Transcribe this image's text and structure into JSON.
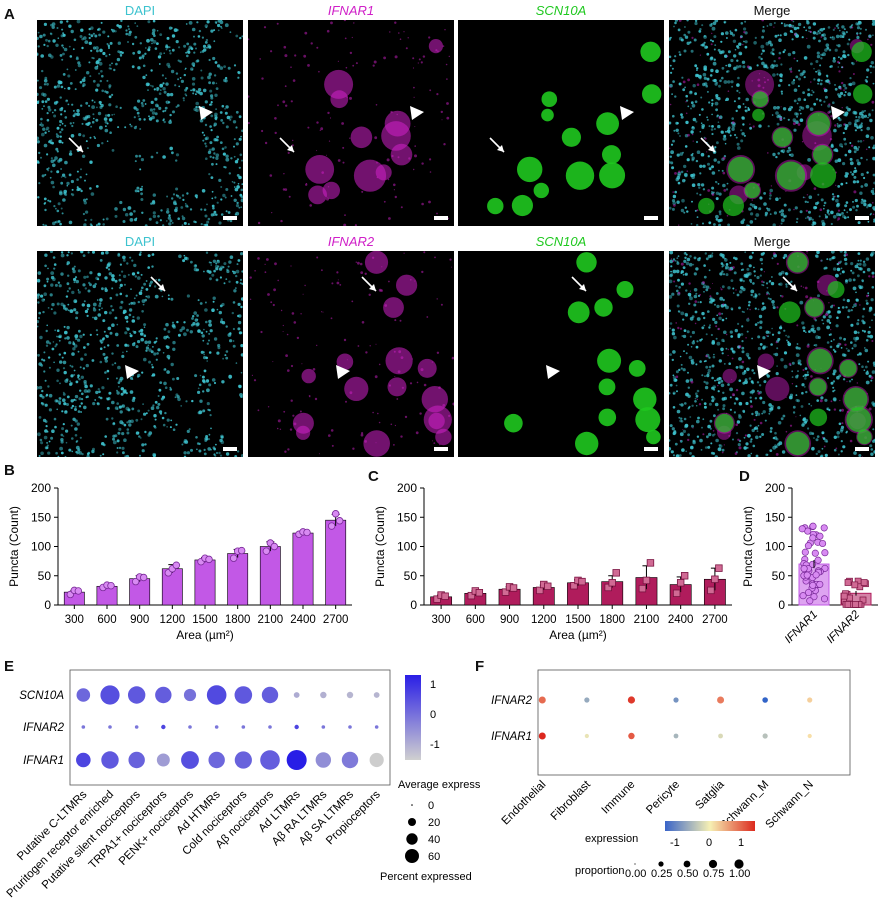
{
  "panel_labels": {
    "A": "A",
    "B": "B",
    "C": "C",
    "D": "D",
    "E": "E",
    "F": "F"
  },
  "panel_a": {
    "row1": [
      "DAPI",
      "IFNAR1",
      "SCN10A",
      "Merge"
    ],
    "row2": [
      "DAPI",
      "IFNAR2",
      "SCN10A",
      "Merge"
    ],
    "colors": {
      "dapi": "#3ec3cf",
      "ifnar": "#d020c8",
      "scn10a": "#1fc81f",
      "merge": "#111111"
    }
  },
  "chart_data": [
    {
      "panel": "B",
      "type": "bar",
      "ylabel": "Puncta (Count)",
      "xlabel": "Area (µm²)",
      "ylim": [
        0,
        200
      ],
      "yticks": [
        "0",
        "50",
        "100",
        "150",
        "200"
      ],
      "categories": [
        "300",
        "600",
        "900",
        "1200",
        "1500",
        "1800",
        "2100",
        "2400",
        "2700"
      ],
      "values": [
        22,
        32,
        45,
        62,
        77,
        88,
        100,
        123,
        145
      ],
      "errors": [
        3,
        2,
        5,
        7,
        4,
        7,
        8,
        3,
        10
      ],
      "points": [
        [
          18,
          25,
          24
        ],
        [
          30,
          34,
          33
        ],
        [
          40,
          48,
          47
        ],
        [
          55,
          62,
          68
        ],
        [
          74,
          80,
          78
        ],
        [
          80,
          92,
          93
        ],
        [
          92,
          106,
          100
        ],
        [
          121,
          125,
          124
        ],
        [
          135,
          156,
          144
        ]
      ],
      "color": "#c258e6"
    },
    {
      "panel": "C",
      "type": "bar",
      "ylabel": "Puncta (Count)",
      "xlabel": "Area (µm²)",
      "ylim": [
        0,
        200
      ],
      "yticks": [
        "0",
        "50",
        "100",
        "150",
        "200"
      ],
      "categories": [
        "300",
        "600",
        "900",
        "1200",
        "1500",
        "1800",
        "2100",
        "2400",
        "2700"
      ],
      "values": [
        14,
        20,
        27,
        30,
        38,
        40,
        47,
        35,
        44
      ],
      "errors": [
        3,
        4,
        4,
        4,
        5,
        10,
        20,
        13,
        19
      ],
      "points": [
        [
          10,
          17,
          15
        ],
        [
          16,
          24,
          21
        ],
        [
          22,
          31,
          29
        ],
        [
          25,
          35,
          32
        ],
        [
          33,
          42,
          40
        ],
        [
          30,
          38,
          55
        ],
        [
          28,
          42,
          72
        ],
        [
          20,
          38,
          50
        ],
        [
          25,
          44,
          63
        ]
      ],
      "color": "#b01c5c"
    },
    {
      "panel": "D",
      "type": "bar",
      "ylabel": "Puncta (Count)",
      "ylim": [
        0,
        200
      ],
      "yticks": [
        "0",
        "50",
        "100",
        "150",
        "200"
      ],
      "categories": [
        "IFNAR1",
        "IFNAR2"
      ],
      "values": [
        70,
        20
      ],
      "errors": [
        7,
        4
      ],
      "colors": [
        "#c258e6",
        "#b01c5c"
      ]
    },
    {
      "panel": "E",
      "type": "scatter",
      "rows": [
        "SCN10A",
        "IFNAR2",
        "IFNAR1"
      ],
      "columns": [
        "Putative C-LTMRs",
        "Pruritogen receptor enriched",
        "Putative silent nociceptors",
        "TRPA1+ nociceptors",
        "PENK+ nociceptors",
        "Ad HTMRs",
        "Cold nociceptors",
        "Aβ nociceptors",
        "Ad LTMRs",
        "Aβ RA LTMRs",
        "Aβ SA LTMRs",
        "Propioceptors"
      ],
      "percent_expressed": [
        [
          28,
          55,
          45,
          40,
          22,
          58,
          46,
          40,
          5,
          6,
          6,
          5
        ],
        [
          2,
          2,
          2,
          3,
          2,
          2,
          2,
          2,
          3,
          2,
          2,
          2
        ],
        [
          32,
          45,
          40,
          25,
          48,
          40,
          44,
          58,
          60,
          36,
          40,
          30
        ]
      ],
      "average_expression": [
        [
          0.3,
          0.8,
          0.6,
          0.5,
          0.1,
          0.9,
          0.6,
          0.5,
          -1.1,
          -1.2,
          -1.3,
          -1.3
        ],
        [
          0,
          0,
          0,
          1,
          0,
          0,
          0,
          0,
          1,
          0,
          0,
          0
        ],
        [
          1.0,
          0.6,
          0.4,
          -0.8,
          0.8,
          0.3,
          0.4,
          0.5,
          1.8,
          -0.5,
          -0.1,
          -1.8
        ]
      ],
      "legend_color_title": "Average expression",
      "legend_color_ticks": [
        "1",
        "0",
        "-1"
      ],
      "legend_size_title": "Percent expressed",
      "legend_size_ticks": [
        "0",
        "20",
        "40",
        "60"
      ]
    },
    {
      "panel": "F",
      "type": "scatter",
      "rows": [
        "IFNAR2",
        "IFNAR1"
      ],
      "columns": [
        "Endothelial",
        "Fibroblast",
        "Immune",
        "Pericyte",
        "Satglia",
        "Schwann_M",
        "Schwann_N"
      ],
      "expression": [
        [
          0.8,
          -0.6,
          1.1,
          -0.8,
          0.7,
          -1.2,
          0.2
        ],
        [
          1.2,
          -0.1,
          0.9,
          -0.5,
          -0.2,
          -0.4,
          0.1
        ]
      ],
      "proportion": [
        [
          0.5,
          0.2,
          0.55,
          0.2,
          0.5,
          0.25,
          0.2
        ],
        [
          0.5,
          0.1,
          0.4,
          0.15,
          0.15,
          0.2,
          0.1
        ]
      ],
      "legend_color_title": "expression",
      "legend_color_ticks": [
        "-1",
        "0",
        "1"
      ],
      "legend_size_title": "proportion",
      "legend_size_ticks": [
        "0.00",
        "0.25",
        "0.50",
        "0.75",
        "1.00"
      ]
    }
  ]
}
